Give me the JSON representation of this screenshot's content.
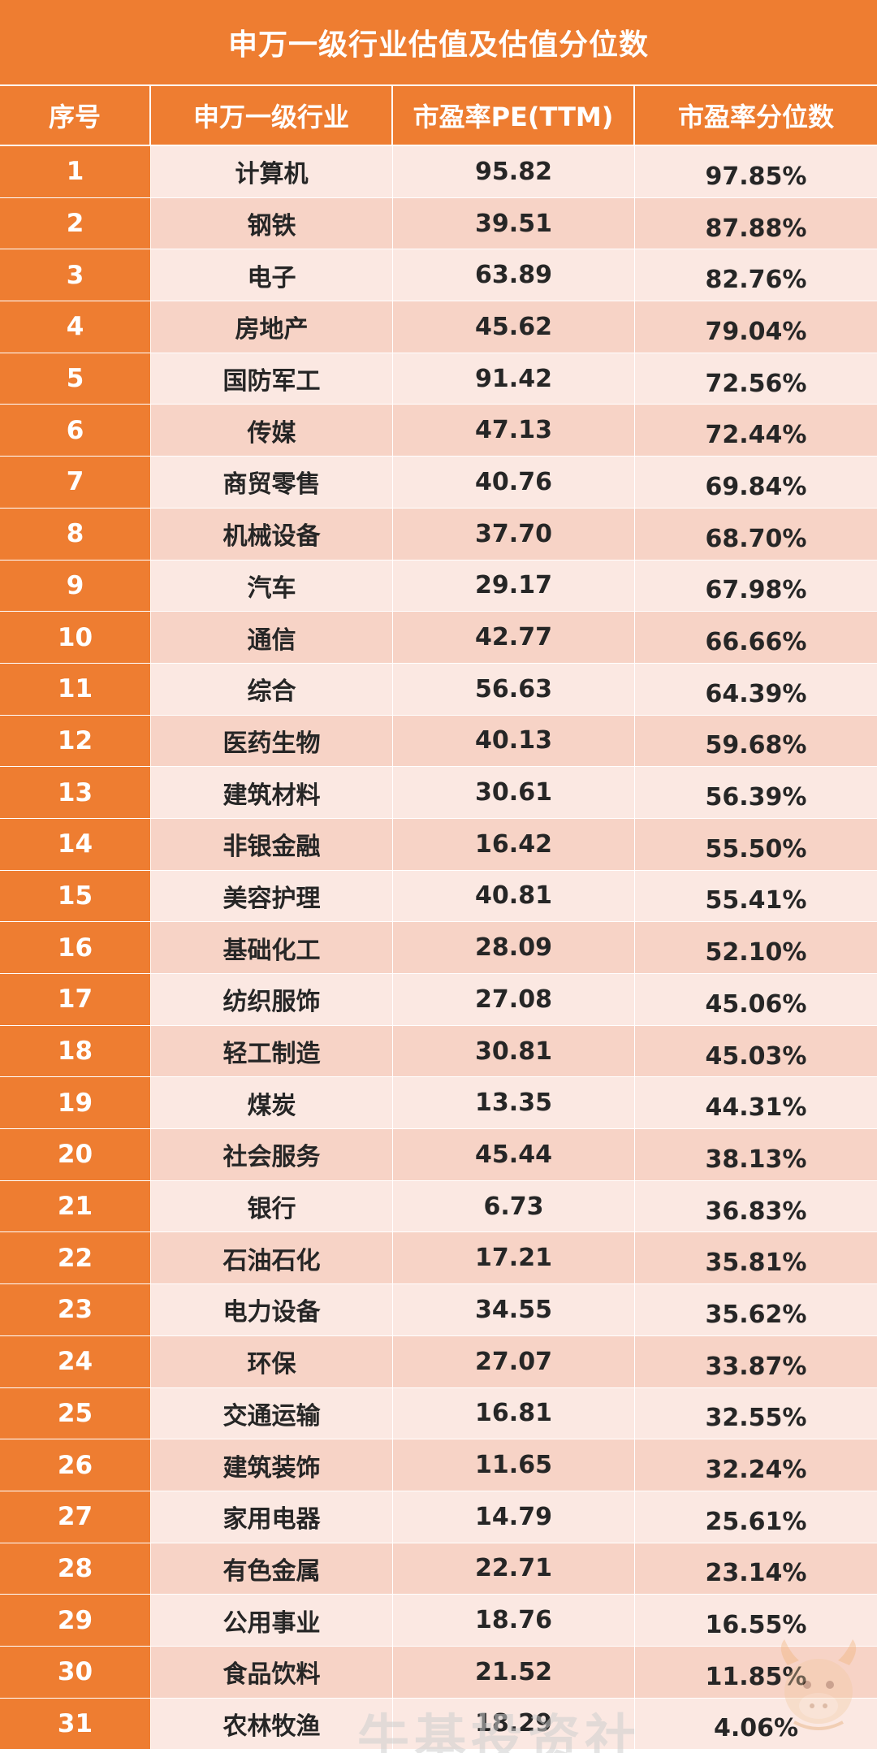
{
  "title": "申万一级行业估值及估值分位数",
  "columns": [
    "序号",
    "申万一级行业",
    "市盈率PE(TTM)",
    "市盈率分位数"
  ],
  "rows": [
    {
      "idx": "1",
      "industry": "计算机",
      "pe": "95.82",
      "pct": "97.85%"
    },
    {
      "idx": "2",
      "industry": "钢铁",
      "pe": "39.51",
      "pct": "87.88%"
    },
    {
      "idx": "3",
      "industry": "电子",
      "pe": "63.89",
      "pct": "82.76%"
    },
    {
      "idx": "4",
      "industry": "房地产",
      "pe": "45.62",
      "pct": "79.04%"
    },
    {
      "idx": "5",
      "industry": "国防军工",
      "pe": "91.42",
      "pct": "72.56%"
    },
    {
      "idx": "6",
      "industry": "传媒",
      "pe": "47.13",
      "pct": "72.44%"
    },
    {
      "idx": "7",
      "industry": "商贸零售",
      "pe": "40.76",
      "pct": "69.84%"
    },
    {
      "idx": "8",
      "industry": "机械设备",
      "pe": "37.70",
      "pct": "68.70%"
    },
    {
      "idx": "9",
      "industry": "汽车",
      "pe": "29.17",
      "pct": "67.98%"
    },
    {
      "idx": "10",
      "industry": "通信",
      "pe": "42.77",
      "pct": "66.66%"
    },
    {
      "idx": "11",
      "industry": "综合",
      "pe": "56.63",
      "pct": "64.39%"
    },
    {
      "idx": "12",
      "industry": "医药生物",
      "pe": "40.13",
      "pct": "59.68%"
    },
    {
      "idx": "13",
      "industry": "建筑材料",
      "pe": "30.61",
      "pct": "56.39%"
    },
    {
      "idx": "14",
      "industry": "非银金融",
      "pe": "16.42",
      "pct": "55.50%"
    },
    {
      "idx": "15",
      "industry": "美容护理",
      "pe": "40.81",
      "pct": "55.41%"
    },
    {
      "idx": "16",
      "industry": "基础化工",
      "pe": "28.09",
      "pct": "52.10%"
    },
    {
      "idx": "17",
      "industry": "纺织服饰",
      "pe": "27.08",
      "pct": "45.06%"
    },
    {
      "idx": "18",
      "industry": "轻工制造",
      "pe": "30.81",
      "pct": "45.03%"
    },
    {
      "idx": "19",
      "industry": "煤炭",
      "pe": "13.35",
      "pct": "44.31%"
    },
    {
      "idx": "20",
      "industry": "社会服务",
      "pe": "45.44",
      "pct": "38.13%"
    },
    {
      "idx": "21",
      "industry": "银行",
      "pe": "6.73",
      "pct": "36.83%"
    },
    {
      "idx": "22",
      "industry": "石油石化",
      "pe": "17.21",
      "pct": "35.81%"
    },
    {
      "idx": "23",
      "industry": "电力设备",
      "pe": "34.55",
      "pct": "35.62%"
    },
    {
      "idx": "24",
      "industry": "环保",
      "pe": "27.07",
      "pct": "33.87%"
    },
    {
      "idx": "25",
      "industry": "交通运输",
      "pe": "16.81",
      "pct": "32.55%"
    },
    {
      "idx": "26",
      "industry": "建筑装饰",
      "pe": "11.65",
      "pct": "32.24%"
    },
    {
      "idx": "27",
      "industry": "家用电器",
      "pe": "14.79",
      "pct": "25.61%"
    },
    {
      "idx": "28",
      "industry": "有色金属",
      "pe": "22.71",
      "pct": "23.14%"
    },
    {
      "idx": "29",
      "industry": "公用事业",
      "pe": "18.76",
      "pct": "16.55%"
    },
    {
      "idx": "30",
      "industry": "食品饮料",
      "pe": "21.52",
      "pct": "11.85%"
    },
    {
      "idx": "31",
      "industry": "农林牧渔",
      "pe": "18.29",
      "pct": "4.06%"
    }
  ],
  "watermark": "牛基投资社",
  "colors": {
    "header": "#ee7d31",
    "row_light": "#fbe8e2",
    "row_dark": "#f7d3c6"
  },
  "icons": {
    "mascot": "cartoon-bull-mascot-icon"
  }
}
